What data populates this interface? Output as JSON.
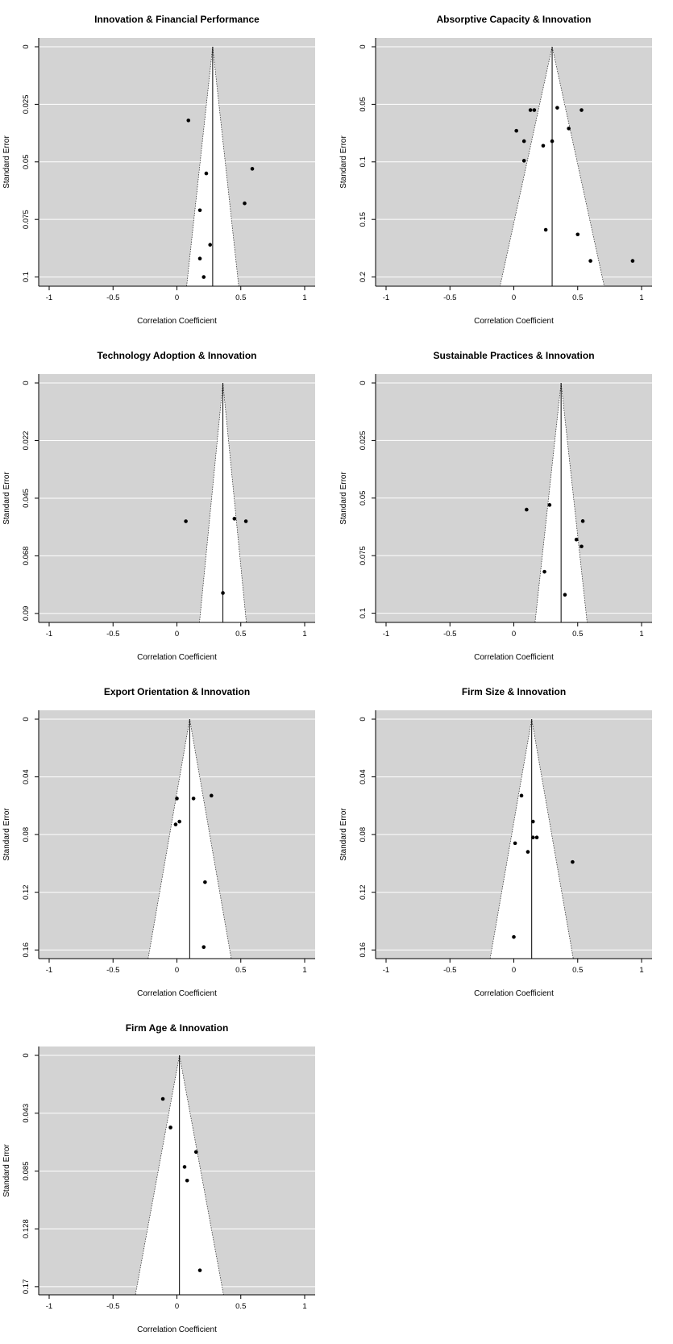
{
  "colors": {
    "panel_bg": "#d3d3d3",
    "grid": "#ffffff",
    "funnel_fill": "#ffffff",
    "point": "#000000",
    "line": "#000000"
  },
  "chart_data": [
    {
      "type": "scatter",
      "title": "Innovation & Financial Performance",
      "xlabel": "Correlation Coefficient",
      "ylabel": "Standard Error",
      "xlim": [
        -1,
        1
      ],
      "x_ticks": [
        -1,
        -0.5,
        0,
        0.5,
        1
      ],
      "x_tick_labels": [
        "-1",
        "-0.5",
        "0",
        "0.5",
        "1"
      ],
      "y_ticks": [
        0,
        0.025,
        0.05,
        0.075,
        0.1
      ],
      "y_tick_labels": [
        "0",
        "0.025",
        "0.05",
        "0.075",
        "0.1"
      ],
      "ymax": 0.104,
      "summary_effect": 0.28,
      "points": [
        [
          0.09,
          0.032
        ],
        [
          0.23,
          0.055
        ],
        [
          0.59,
          0.053
        ],
        [
          0.18,
          0.071
        ],
        [
          0.53,
          0.068
        ],
        [
          0.26,
          0.086
        ],
        [
          0.18,
          0.092
        ],
        [
          0.21,
          0.1
        ]
      ]
    },
    {
      "type": "scatter",
      "title": "Absorptive Capacity & Innovation",
      "xlabel": "Correlation Coefficient",
      "ylabel": "Standard Error",
      "xlim": [
        -1,
        1
      ],
      "x_ticks": [
        -1,
        -0.5,
        0,
        0.5,
        1
      ],
      "x_tick_labels": [
        "-1",
        "-0.5",
        "0",
        "0.5",
        "1"
      ],
      "y_ticks": [
        0,
        0.05,
        0.1,
        0.15,
        0.2
      ],
      "y_tick_labels": [
        "0",
        "0.05",
        "0.1",
        "0.15",
        "0.2"
      ],
      "ymax": 0.208,
      "summary_effect": 0.3,
      "points": [
        [
          0.13,
          0.055
        ],
        [
          0.16,
          0.055
        ],
        [
          0.34,
          0.053
        ],
        [
          0.53,
          0.055
        ],
        [
          0.02,
          0.073
        ],
        [
          0.43,
          0.071
        ],
        [
          0.08,
          0.082
        ],
        [
          0.3,
          0.082
        ],
        [
          0.23,
          0.086
        ],
        [
          0.08,
          0.099
        ],
        [
          0.25,
          0.159
        ],
        [
          0.5,
          0.163
        ],
        [
          0.6,
          0.186
        ],
        [
          0.93,
          0.186
        ]
      ]
    },
    {
      "type": "scatter",
      "title": "Technology Adoption & Innovation",
      "xlabel": "Correlation Coefficient",
      "ylabel": "Standard Error",
      "xlim": [
        -1,
        1
      ],
      "x_ticks": [
        -1,
        -0.5,
        0,
        0.5,
        1
      ],
      "x_tick_labels": [
        "-1",
        "-0.5",
        "0",
        "0.5",
        "1"
      ],
      "y_ticks": [
        0,
        0.0225,
        0.045,
        0.0675,
        0.09
      ],
      "y_tick_labels": [
        "0",
        "0.022",
        "0.045",
        "0.068",
        "0.09"
      ],
      "ymax": 0.0935,
      "summary_effect": 0.36,
      "points": [
        [
          0.07,
          0.054
        ],
        [
          0.45,
          0.053
        ],
        [
          0.54,
          0.054
        ],
        [
          0.36,
          0.082
        ]
      ]
    },
    {
      "type": "scatter",
      "title": "Sustainable Practices & Innovation",
      "xlabel": "Correlation Coefficient",
      "ylabel": "Standard Error",
      "xlim": [
        -1,
        1
      ],
      "x_ticks": [
        -1,
        -0.5,
        0,
        0.5,
        1
      ],
      "x_tick_labels": [
        "-1",
        "-0.5",
        "0",
        "0.5",
        "1"
      ],
      "y_ticks": [
        0,
        0.025,
        0.05,
        0.075,
        0.1
      ],
      "y_tick_labels": [
        "0",
        "0.025",
        "0.05",
        "0.075",
        "0.1"
      ],
      "ymax": 0.104,
      "summary_effect": 0.37,
      "points": [
        [
          0.1,
          0.055
        ],
        [
          0.28,
          0.053
        ],
        [
          0.54,
          0.06
        ],
        [
          0.49,
          0.068
        ],
        [
          0.53,
          0.071
        ],
        [
          0.24,
          0.082
        ],
        [
          0.4,
          0.092
        ]
      ]
    },
    {
      "type": "scatter",
      "title": "Export Orientation & Innovation",
      "xlabel": "Correlation Coefficient",
      "ylabel": "Standard Error",
      "xlim": [
        -1,
        1
      ],
      "x_ticks": [
        -1,
        -0.5,
        0,
        0.5,
        1
      ],
      "x_tick_labels": [
        "-1",
        "-0.5",
        "0",
        "0.5",
        "1"
      ],
      "y_ticks": [
        0,
        0.04,
        0.08,
        0.12,
        0.16
      ],
      "y_tick_labels": [
        "0",
        "0.04",
        "0.08",
        "0.12",
        "0.16"
      ],
      "ymax": 0.166,
      "summary_effect": 0.1,
      "points": [
        [
          0.0,
          0.055
        ],
        [
          0.13,
          0.055
        ],
        [
          0.27,
          0.053
        ],
        [
          0.02,
          0.071
        ],
        [
          -0.01,
          0.073
        ],
        [
          0.22,
          0.113
        ],
        [
          0.21,
          0.158
        ]
      ]
    },
    {
      "type": "scatter",
      "title": "Firm Size & Innovation",
      "xlabel": "Correlation Coefficient",
      "ylabel": "Standard Error",
      "xlim": [
        -1,
        1
      ],
      "x_ticks": [
        -1,
        -0.5,
        0,
        0.5,
        1
      ],
      "x_tick_labels": [
        "-1",
        "-0.5",
        "0",
        "0.5",
        "1"
      ],
      "y_ticks": [
        0,
        0.04,
        0.08,
        0.12,
        0.16
      ],
      "y_tick_labels": [
        "0",
        "0.04",
        "0.08",
        "0.12",
        "0.16"
      ],
      "ymax": 0.166,
      "summary_effect": 0.14,
      "points": [
        [
          0.06,
          0.053
        ],
        [
          0.15,
          0.071
        ],
        [
          0.15,
          0.082
        ],
        [
          0.18,
          0.082
        ],
        [
          0.01,
          0.086
        ],
        [
          0.11,
          0.092
        ],
        [
          0.46,
          0.099
        ],
        [
          0.0,
          0.151
        ]
      ]
    },
    {
      "type": "scatter",
      "title": "Firm Age & Innovation",
      "xlabel": "Correlation Coefficient",
      "ylabel": "Standard Error",
      "xlim": [
        -1,
        1
      ],
      "x_ticks": [
        -1,
        -0.5,
        0,
        0.5,
        1
      ],
      "x_tick_labels": [
        "-1",
        "-0.5",
        "0",
        "0.5",
        "1"
      ],
      "y_ticks": [
        0,
        0.0425,
        0.085,
        0.1275,
        0.17
      ],
      "y_tick_labels": [
        "0",
        "0.043",
        "0.085",
        "0.128",
        "0.17"
      ],
      "ymax": 0.176,
      "summary_effect": 0.02,
      "points": [
        [
          -0.11,
          0.032
        ],
        [
          -0.05,
          0.053
        ],
        [
          0.15,
          0.071
        ],
        [
          0.06,
          0.082
        ],
        [
          0.08,
          0.092
        ],
        [
          0.18,
          0.158
        ]
      ]
    }
  ]
}
